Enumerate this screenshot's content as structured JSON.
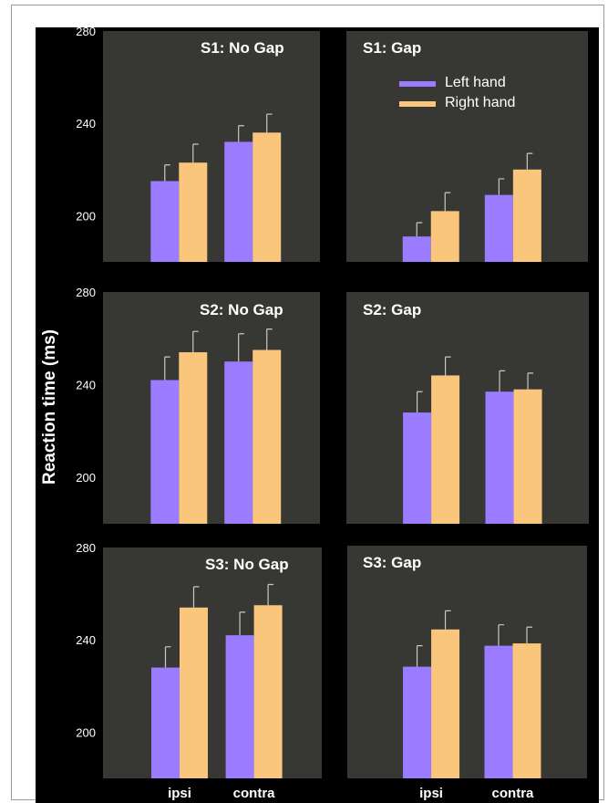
{
  "colors": {
    "left_hand": "#9b7bff",
    "right_hand": "#f9c67b",
    "panel": "#373733",
    "background": "#000000",
    "text": "#ffffff"
  },
  "chart_data": [
    {
      "type": "bar",
      "title": "S1: No Gap",
      "categories": [
        "ipsi",
        "contra"
      ],
      "ylim": [
        180,
        280
      ],
      "yticks": [
        200,
        240,
        280
      ],
      "ylabel": "Reaction time (ms)",
      "series": [
        {
          "name": "Left hand",
          "values": [
            215,
            232
          ],
          "errors": [
            7,
            7
          ]
        },
        {
          "name": "Right hand",
          "values": [
            223,
            236
          ],
          "errors": [
            8,
            8
          ]
        }
      ]
    },
    {
      "type": "bar",
      "title": "S1: Gap",
      "categories": [
        "ipsi",
        "contra"
      ],
      "ylim": [
        180,
        280
      ],
      "yticks": [
        200,
        240,
        280
      ],
      "legend": {
        "position": "top-right",
        "entries": [
          "Left hand",
          "Right hand"
        ]
      },
      "series": [
        {
          "name": "Left hand",
          "values": [
            191,
            209
          ],
          "errors": [
            6,
            7
          ]
        },
        {
          "name": "Right hand",
          "values": [
            202,
            220
          ],
          "errors": [
            8,
            7
          ]
        }
      ]
    },
    {
      "type": "bar",
      "title": "S2: No Gap",
      "categories": [
        "ipsi",
        "contra"
      ],
      "ylim": [
        180,
        280
      ],
      "yticks": [
        200,
        240,
        280
      ],
      "series": [
        {
          "name": "Left hand",
          "values": [
            242,
            250
          ],
          "errors": [
            10,
            12
          ]
        },
        {
          "name": "Right hand",
          "values": [
            254,
            255
          ],
          "errors": [
            9,
            9
          ]
        }
      ]
    },
    {
      "type": "bar",
      "title": "S2: Gap",
      "categories": [
        "ipsi",
        "contra"
      ],
      "ylim": [
        180,
        280
      ],
      "yticks": [
        200,
        240,
        280
      ],
      "series": [
        {
          "name": "Left hand",
          "values": [
            228,
            237
          ],
          "errors": [
            9,
            9
          ]
        },
        {
          "name": "Right hand",
          "values": [
            244,
            238
          ],
          "errors": [
            8,
            7
          ]
        }
      ]
    },
    {
      "type": "bar",
      "title": "S3: No Gap",
      "categories": [
        "ipsi",
        "contra"
      ],
      "ylim": [
        180,
        280
      ],
      "yticks": [
        200,
        240,
        280
      ],
      "series": [
        {
          "name": "Left hand",
          "values": [
            228,
            242
          ],
          "errors": [
            9,
            10
          ]
        },
        {
          "name": "Right hand",
          "values": [
            254,
            255
          ],
          "errors": [
            9,
            9
          ]
        }
      ]
    },
    {
      "type": "bar",
      "title": "S3: Gap",
      "categories": [
        "ipsi",
        "contra"
      ],
      "ylim": [
        180,
        280
      ],
      "yticks": [
        200,
        240,
        280
      ],
      "series": [
        {
          "name": "Left hand",
          "values": [
            228,
            237
          ],
          "errors": [
            9,
            9
          ]
        },
        {
          "name": "Right hand",
          "values": [
            244,
            238
          ],
          "errors": [
            8,
            7
          ]
        }
      ]
    }
  ]
}
